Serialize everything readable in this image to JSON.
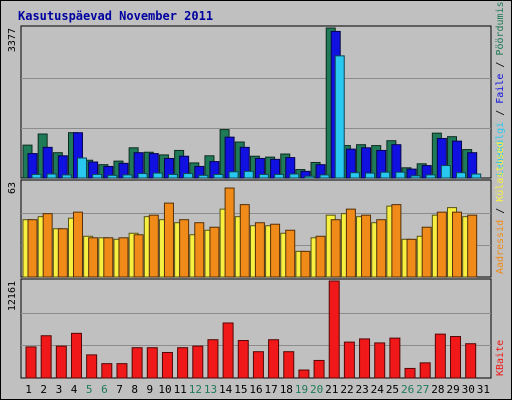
{
  "chart_data": [
    {
      "type": "bar",
      "panel": "top",
      "title": "Kasutuspäevad November 2011",
      "ymax_label": "3377",
      "ylim": [
        0,
        3377
      ],
      "categories": [
        "1",
        "2",
        "3",
        "4",
        "5",
        "6",
        "7",
        "8",
        "9",
        "10",
        "11",
        "12",
        "13",
        "14",
        "15",
        "16",
        "17",
        "18",
        "19",
        "20",
        "21",
        "22",
        "23",
        "24",
        "25",
        "26",
        "27",
        "28",
        "29",
        "30",
        "31"
      ],
      "weekend_days": [
        "5",
        "6",
        "12",
        "13",
        "19",
        "20",
        "26",
        "27"
      ],
      "series": [
        {
          "name": "Pöördumisi",
          "color": "#1f7a58",
          "values": [
            740,
            990,
            570,
            1020,
            400,
            300,
            380,
            680,
            580,
            520,
            620,
            340,
            500,
            1090,
            810,
            490,
            470,
            540,
            190,
            350,
            3377,
            730,
            750,
            730,
            840,
            230,
            320,
            1010,
            930,
            640,
            0
          ]
        },
        {
          "name": "Faile",
          "color": "#1010e0",
          "values": [
            550,
            690,
            500,
            1020,
            360,
            260,
            330,
            570,
            550,
            440,
            490,
            260,
            370,
            920,
            690,
            440,
            420,
            460,
            150,
            300,
            3300,
            650,
            680,
            620,
            750,
            200,
            280,
            890,
            830,
            570,
            0
          ]
        },
        {
          "name": "Lehekülgi",
          "color": "#28c8f0",
          "values": [
            80,
            90,
            70,
            450,
            80,
            60,
            70,
            100,
            110,
            80,
            100,
            60,
            80,
            140,
            150,
            80,
            80,
            90,
            40,
            70,
            2750,
            120,
            110,
            130,
            130,
            50,
            70,
            280,
            120,
            90,
            0
          ]
        }
      ]
    },
    {
      "type": "bar",
      "panel": "middle",
      "ymax_label": "63",
      "ylim": [
        0,
        63
      ],
      "series": [
        {
          "name": "Külastused",
          "color": "#f8f040",
          "values": [
            38,
            40,
            32,
            39,
            27,
            26,
            25,
            29,
            40,
            38,
            36,
            28,
            31,
            45,
            40,
            34,
            34,
            29,
            17,
            26,
            41,
            42,
            40,
            36,
            47,
            25,
            27,
            41,
            46,
            40,
            0
          ]
        },
        {
          "name": "Aadressid",
          "color": "#f08a18",
          "values": [
            38,
            42,
            32,
            43,
            26,
            26,
            26,
            28,
            41,
            49,
            38,
            36,
            33,
            59,
            48,
            36,
            35,
            31,
            17,
            27,
            38,
            45,
            41,
            38,
            48,
            25,
            33,
            43,
            43,
            41,
            0
          ]
        }
      ]
    },
    {
      "type": "bar",
      "panel": "bottom",
      "ymax_label": "12161",
      "ylim": [
        0,
        12161
      ],
      "series": [
        {
          "name": "KBaite",
          "color": "#f01818",
          "values": [
            3900,
            5300,
            4000,
            5600,
            2900,
            1800,
            1800,
            3800,
            3800,
            3200,
            3800,
            4000,
            4800,
            6900,
            4700,
            3300,
            4800,
            3300,
            1000,
            2200,
            12161,
            4500,
            4900,
            4400,
            5000,
            1200,
            1900,
            5500,
            5200,
            4300,
            0
          ]
        }
      ]
    }
  ]
}
